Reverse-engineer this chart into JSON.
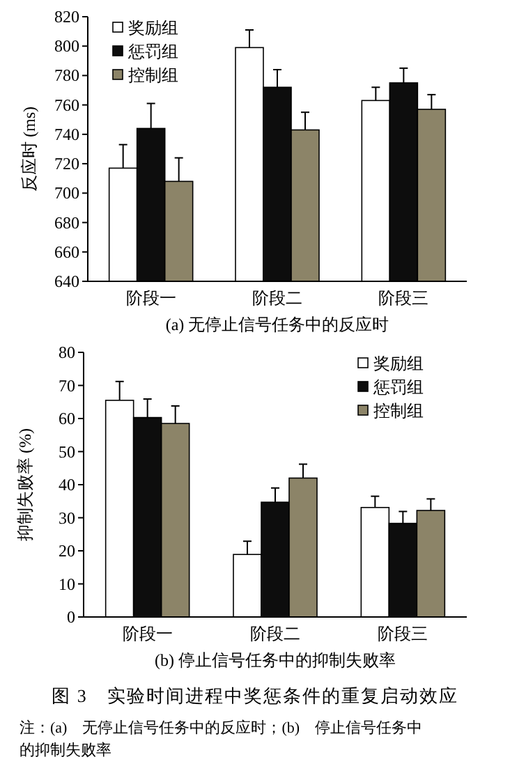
{
  "chart_data": [
    {
      "type": "bar",
      "xlabel": "(a) 无停止信号任务中的反应时",
      "ylabel": "反应时 (ms)",
      "categories": [
        "阶段一",
        "阶段二",
        "阶段三"
      ],
      "ylim": [
        640,
        820
      ],
      "yticks": [
        640,
        660,
        680,
        700,
        720,
        740,
        760,
        780,
        800,
        820
      ],
      "legend": "top left",
      "grid": false,
      "series": [
        {
          "name": "奖励组",
          "color": "#ffffff",
          "values": [
            717,
            799,
            763
          ],
          "errors": [
            [
              717,
              733
            ],
            [
              799,
              811
            ],
            [
              763,
              772
            ]
          ]
        },
        {
          "name": "惩罚组",
          "color": "#0d0d0d",
          "values": [
            744,
            772,
            775
          ],
          "errors": [
            [
              744,
              761
            ],
            [
              772,
              784
            ],
            [
              775,
              785
            ]
          ]
        },
        {
          "name": "控制组",
          "color": "#8c8468",
          "values": [
            708,
            743,
            757
          ],
          "errors": [
            [
              708,
              724
            ],
            [
              743,
              755
            ],
            [
              757,
              767
            ]
          ]
        }
      ]
    },
    {
      "type": "bar",
      "xlabel": "(b) 停止信号任务中的抑制失败率",
      "ylabel": "抑制失败率 (%)",
      "categories": [
        "阶段一",
        "阶段二",
        "阶段三"
      ],
      "ylim": [
        0,
        80
      ],
      "yticks": [
        0,
        10,
        20,
        30,
        40,
        50,
        60,
        70,
        80
      ],
      "legend": "top right",
      "grid": false,
      "series": [
        {
          "name": "奖励组",
          "color": "#ffffff",
          "values": [
            65.5,
            18.9,
            33.1
          ],
          "errors": [
            [
              65.5,
              71.2
            ],
            [
              18.9,
              22.9
            ],
            [
              33.1,
              36.5
            ]
          ]
        },
        {
          "name": "惩罚组",
          "color": "#0d0d0d",
          "values": [
            60.3,
            34.7,
            28.3
          ],
          "errors": [
            [
              60.3,
              65.9
            ],
            [
              34.7,
              39
            ],
            [
              28.3,
              31.9
            ]
          ]
        },
        {
          "name": "控制组",
          "color": "#8c8468",
          "values": [
            58.5,
            42,
            32.2
          ],
          "errors": [
            [
              58.5,
              63.8
            ],
            [
              42,
              46.2
            ],
            [
              32.2,
              35.7
            ]
          ]
        }
      ],
      "annotations": [
        "图 3　实验时间进程中奖惩条件的重复启动效应",
        "注：(a)　无停止信号任务中的反应时；(b)　停止信号任务中的抑制失败率"
      ]
    }
  ]
}
